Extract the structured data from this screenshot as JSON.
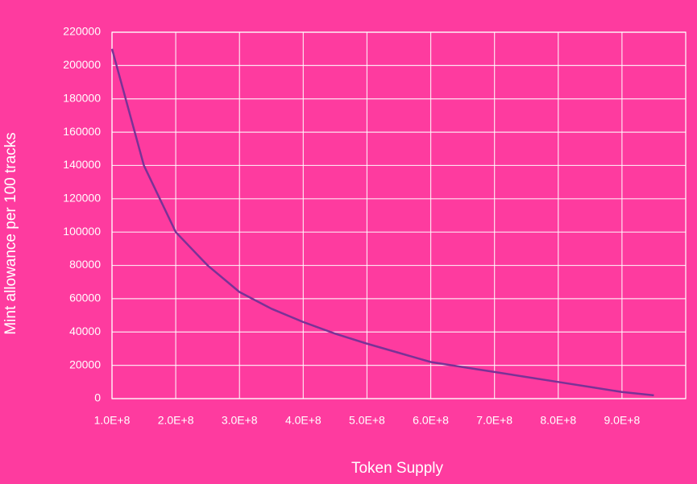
{
  "chart_data": {
    "type": "line",
    "x_label": "Token Supply",
    "y_label": "Mint allowance per 100 tracks",
    "x": [
      100000000,
      150000000,
      200000000,
      250000000,
      300000000,
      350000000,
      400000000,
      450000000,
      500000000,
      550000000,
      600000000,
      650000000,
      700000000,
      750000000,
      800000000,
      850000000,
      900000000,
      950000000
    ],
    "series": [
      {
        "name": "Mint allowance",
        "color": "#7a3296",
        "values": [
          210000,
          140000,
          100000,
          80000,
          64000,
          54000,
          46000,
          39000,
          33000,
          27500,
          22000,
          19000,
          16000,
          13000,
          10000,
          7000,
          4000,
          2000
        ]
      }
    ],
    "xlim": [
      100000000,
      1000000000
    ],
    "xticks": [
      {
        "value": 100000000,
        "label": "1.0E+8"
      },
      {
        "value": 200000000,
        "label": "2.0E+8"
      },
      {
        "value": 300000000,
        "label": "3.0E+8"
      },
      {
        "value": 400000000,
        "label": "4.0E+8"
      },
      {
        "value": 500000000,
        "label": "5.0E+8"
      },
      {
        "value": 600000000,
        "label": "6.0E+8"
      },
      {
        "value": 700000000,
        "label": "7.0E+8"
      },
      {
        "value": 800000000,
        "label": "8.0E+8"
      },
      {
        "value": 900000000,
        "label": "9.0E+8"
      }
    ],
    "ylim": [
      0,
      220000
    ],
    "yticks": [
      0,
      20000,
      40000,
      60000,
      80000,
      100000,
      120000,
      140000,
      160000,
      180000,
      200000,
      220000
    ],
    "grid": true
  }
}
